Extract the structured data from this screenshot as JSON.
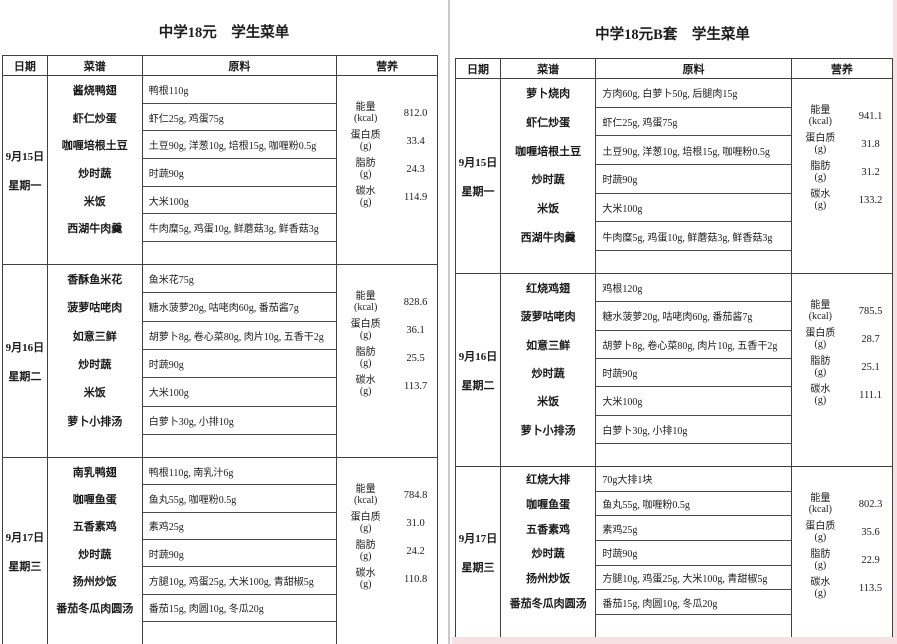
{
  "pages": {
    "left": {
      "title": "中学18元    学生菜单",
      "headers": {
        "date": "日期",
        "menu": "菜谱",
        "ingredients": "原料",
        "nutrition": "营养"
      },
      "groups": [
        {
          "date": [
            "9月15日",
            "星期一"
          ],
          "rows": [
            {
              "dish": "酱烧鸭翅",
              "ing": "鸭根110g"
            },
            {
              "dish": "虾仁炒蛋",
              "ing": "虾仁25g, 鸡蛋75g"
            },
            {
              "dish": "咖喱培根土豆",
              "ing": "土豆90g, 洋葱10g, 培根15g, 咖喱粉0.5g"
            },
            {
              "dish": "炒时蔬",
              "ing": "时蔬90g"
            },
            {
              "dish": "米饭",
              "ing": "大米100g"
            },
            {
              "dish": "西湖牛肉羹",
              "ing": "牛肉糜5g, 鸡蛋10g, 鲜蘑菇3g, 鲜香菇3g"
            }
          ],
          "nutrition": [
            {
              "label": "能量",
              "unit": "(kcal)",
              "value": "812.0"
            },
            {
              "label": "蛋白质",
              "unit": "(g)",
              "value": "33.4"
            },
            {
              "label": "脂肪",
              "unit": "(g)",
              "value": "24.3"
            },
            {
              "label": "碳水",
              "unit": "(g)",
              "value": "114.9"
            }
          ]
        },
        {
          "date": [
            "9月16日",
            "星期二"
          ],
          "rows": [
            {
              "dish": "香酥鱼米花",
              "ing": "鱼米花75g"
            },
            {
              "dish": "菠萝咕咾肉",
              "ing": "糖水菠萝20g, 咕咾肉60g, 番茄酱7g"
            },
            {
              "dish": "如意三鲜",
              "ing": "胡萝卜8g, 卷心菜80g, 肉片10g, 五香干2g"
            },
            {
              "dish": "炒时蔬",
              "ing": "时蔬90g"
            },
            {
              "dish": "米饭",
              "ing": "大米100g"
            },
            {
              "dish": "萝卜小排汤",
              "ing": "白萝卜30g, 小排10g"
            }
          ],
          "nutrition": [
            {
              "label": "能量",
              "unit": "(kcal)",
              "value": "828.6"
            },
            {
              "label": "蛋白质",
              "unit": "(g)",
              "value": "36.1"
            },
            {
              "label": "脂肪",
              "unit": "(g)",
              "value": "25.5"
            },
            {
              "label": "碳水",
              "unit": "(g)",
              "value": "113.7"
            }
          ]
        },
        {
          "date": [
            "9月17日",
            "星期三"
          ],
          "rows": [
            {
              "dish": "南乳鸭翅",
              "ing": "鸭根110g, 南乳汁6g"
            },
            {
              "dish": "咖喱鱼蛋",
              "ing": "鱼丸55g, 咖喱粉0.5g"
            },
            {
              "dish": "五香素鸡",
              "ing": "素鸡25g"
            },
            {
              "dish": "炒时蔬",
              "ing": "时蔬90g"
            },
            {
              "dish": "扬州炒饭",
              "ing": "方腿10g, 鸡蛋25g, 大米100g, 青甜椒5g"
            },
            {
              "dish": "番茄冬瓜肉圆汤",
              "ing": "番茄15g, 肉圆10g, 冬瓜20g"
            }
          ],
          "nutrition": [
            {
              "label": "能量",
              "unit": "(kcal)",
              "value": "784.8"
            },
            {
              "label": "蛋白质",
              "unit": "(g)",
              "value": "31.0"
            },
            {
              "label": "脂肪",
              "unit": "(g)",
              "value": "24.2"
            },
            {
              "label": "碳水",
              "unit": "(g)",
              "value": "110.8"
            }
          ]
        }
      ]
    },
    "right": {
      "title": "中学18元B套    学生菜单",
      "headers": {
        "date": "日期",
        "menu": "菜谱",
        "ingredients": "原料",
        "nutrition": "营养"
      },
      "groups": [
        {
          "date": [
            "9月15日",
            "星期一"
          ],
          "rows": [
            {
              "dish": "萝卜烧肉",
              "ing": "方肉60g, 白萝卜50g, 后腿肉15g"
            },
            {
              "dish": "虾仁炒蛋",
              "ing": "虾仁25g, 鸡蛋75g"
            },
            {
              "dish": "咖喱培根土豆",
              "ing": "土豆90g, 洋葱10g, 培根15g, 咖喱粉0.5g"
            },
            {
              "dish": "炒时蔬",
              "ing": "时蔬90g"
            },
            {
              "dish": "米饭",
              "ing": "大米100g"
            },
            {
              "dish": "西湖牛肉羹",
              "ing": "牛肉糜5g, 鸡蛋10g, 鲜蘑菇3g, 鲜香菇3g"
            }
          ],
          "nutrition": [
            {
              "label": "能量",
              "unit": "(kcal)",
              "value": "941.1"
            },
            {
              "label": "蛋白质",
              "unit": "(g)",
              "value": "31.8"
            },
            {
              "label": "脂肪",
              "unit": "(g)",
              "value": "31.2"
            },
            {
              "label": "碳水",
              "unit": "(g)",
              "value": "133.2"
            }
          ]
        },
        {
          "date": [
            "9月16日",
            "星期二"
          ],
          "rows": [
            {
              "dish": "红烧鸡翅",
              "ing": "鸡根120g"
            },
            {
              "dish": "菠萝咕咾肉",
              "ing": "糖水菠萝20g, 咕咾肉60g, 番茄酱7g"
            },
            {
              "dish": "如意三鲜",
              "ing": "胡萝卜8g, 卷心菜80g, 肉片10g, 五香干2g"
            },
            {
              "dish": "炒时蔬",
              "ing": "时蔬90g"
            },
            {
              "dish": "米饭",
              "ing": "大米100g"
            },
            {
              "dish": "萝卜小排汤",
              "ing": "白萝卜30g, 小排10g"
            }
          ],
          "nutrition": [
            {
              "label": "能量",
              "unit": "(kcal)",
              "value": "785.5"
            },
            {
              "label": "蛋白质",
              "unit": "(g)",
              "value": "28.7"
            },
            {
              "label": "脂肪",
              "unit": "(g)",
              "value": "25.1"
            },
            {
              "label": "碳水",
              "unit": "(g)",
              "value": "111.1"
            }
          ]
        },
        {
          "date": [
            "9月17日",
            "星期三"
          ],
          "rows": [
            {
              "dish": "红烧大排",
              "ing": "70g大排1块"
            },
            {
              "dish": "咖喱鱼蛋",
              "ing": "鱼丸55g, 咖喱粉0.5g"
            },
            {
              "dish": "五香素鸡",
              "ing": "素鸡25g"
            },
            {
              "dish": "炒时蔬",
              "ing": "时蔬90g"
            },
            {
              "dish": "扬州炒饭",
              "ing": "方腿10g, 鸡蛋25g, 大米100g, 青甜椒5g"
            },
            {
              "dish": "番茄冬瓜肉圆汤",
              "ing": "番茄15g, 肉圆10g, 冬瓜20g"
            }
          ],
          "nutrition": [
            {
              "label": "能量",
              "unit": "(kcal)",
              "value": "802.3"
            },
            {
              "label": "蛋白质",
              "unit": "(g)",
              "value": "35.6"
            },
            {
              "label": "脂肪",
              "unit": "(g)",
              "value": "22.9"
            },
            {
              "label": "碳水",
              "unit": "(g)",
              "value": "113.5"
            }
          ]
        }
      ]
    }
  }
}
